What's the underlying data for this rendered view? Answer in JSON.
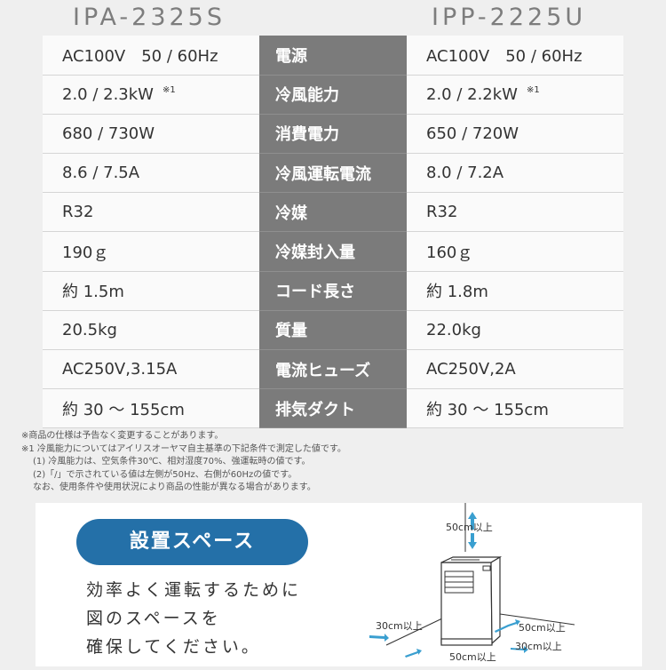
{
  "models": [
    "IPA-2325S",
    "IPP-2225U"
  ],
  "rows": [
    {
      "label": "電源",
      "a": "AC100V　50 / 60Hz",
      "b": "AC100V　50 / 60Hz"
    },
    {
      "label": "冷風能力",
      "a": "2.0 / 2.3kW",
      "a_note": "※1",
      "b": "2.0 / 2.2kW",
      "b_note": "※1"
    },
    {
      "label": "消費電力",
      "a": "680 / 730W",
      "b": "650 / 720W"
    },
    {
      "label": "冷風運転電流",
      "a": "8.6 / 7.5A",
      "b": "8.0 / 7.2A"
    },
    {
      "label": "冷媒",
      "a": "R32",
      "b": "R32"
    },
    {
      "label": "冷媒封入量",
      "a": "190ｇ",
      "b": "160ｇ"
    },
    {
      "label": "コード長さ",
      "a": "約 1.5m",
      "b": "約 1.8m"
    },
    {
      "label": "質量",
      "a": "20.5kg",
      "b": "22.0kg"
    },
    {
      "label": "電流ヒューズ",
      "a": "AC250V,3.15A",
      "b": "AC250V,2A"
    },
    {
      "label": "排気ダクト",
      "a": "約 30 ～ 155cm",
      "b": "約 30 ～ 155cm"
    }
  ],
  "notes": [
    "※商品の仕様は予告なく変更することがあります。",
    "※1 冷風能力についてはアイリスオーヤマ自主基準の下記条件で測定した値です。",
    "(1) 冷風能力は、空気条件30℃、相対湿度70%、強運転時の値です。",
    "(2)「/」で示されている値は左側が50Hz、右側が60Hzの値です。",
    "なお、使用条件や使用状況により商品の性能が異なる場合があります。"
  ],
  "space": {
    "title": "設置スペース",
    "lines": [
      "効率よく運転するために",
      "図のスペースを",
      "確保してください。"
    ],
    "labels": {
      "top": "50cm以上",
      "left": "30cm以上",
      "right_back": "50cm以上",
      "right_front": "30cm以上",
      "front": "50cm以上"
    },
    "arrow_color": "#3a9fd0"
  }
}
